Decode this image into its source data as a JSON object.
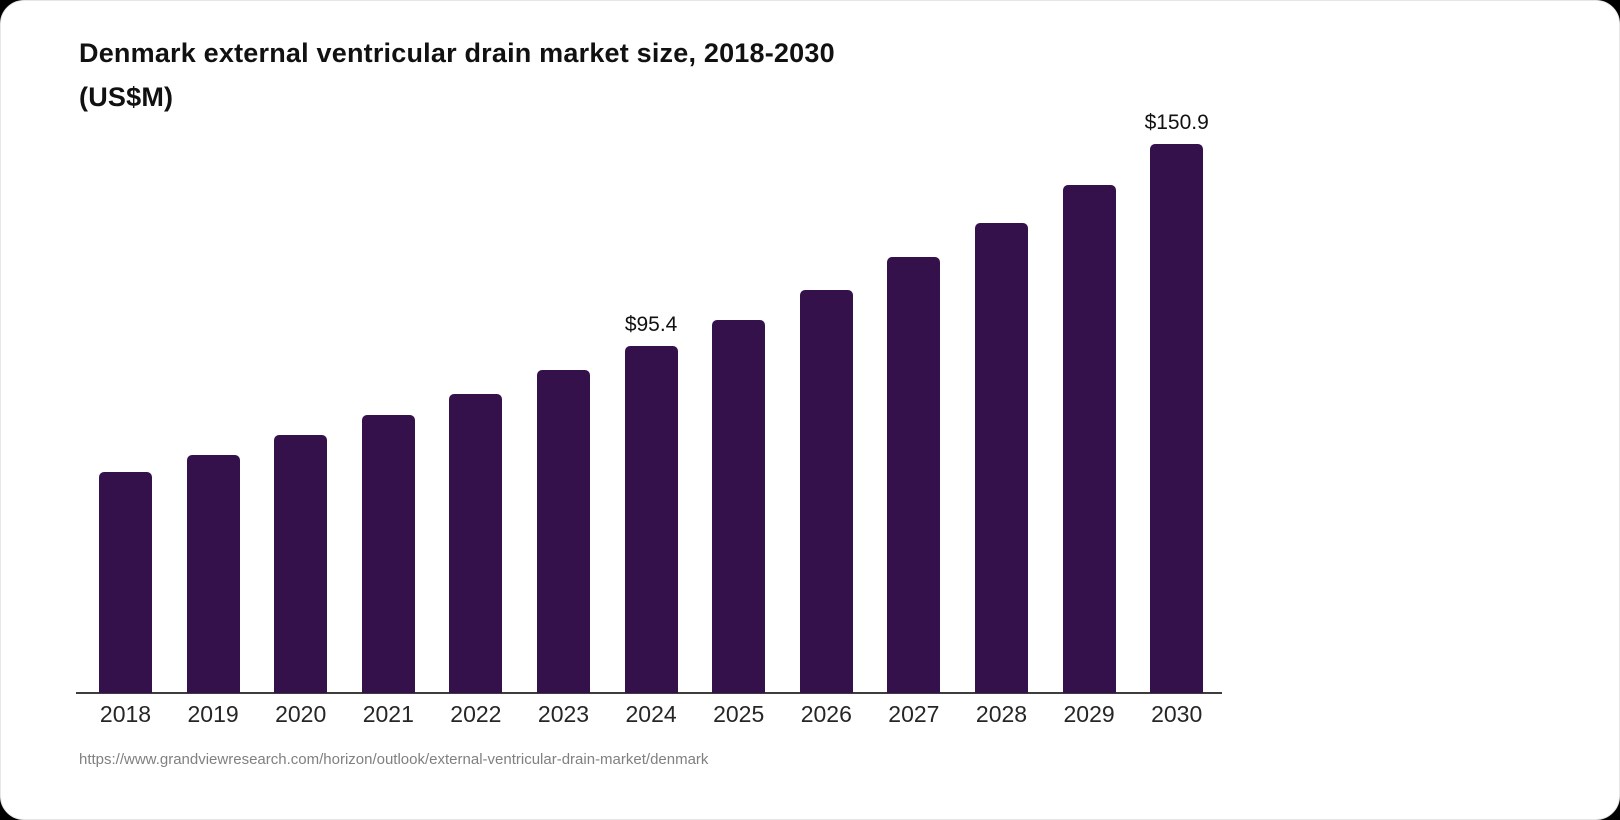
{
  "header": {
    "title_line1": "Denmark external ventricular drain market size, 2018-2030",
    "title_line2": "(US$M)"
  },
  "footer": {
    "source_url": "https://www.grandviewresearch.com/horizon/outlook/external-ventricular-drain-market/denmark"
  },
  "chart_data": {
    "type": "bar",
    "title": "Denmark external ventricular drain market size, 2018-2030 (US$M)",
    "xlabel": "",
    "ylabel": "US$M",
    "categories": [
      "2018",
      "2019",
      "2020",
      "2021",
      "2022",
      "2023",
      "2024",
      "2025",
      "2026",
      "2027",
      "2028",
      "2029",
      "2030"
    ],
    "values": [
      60.7,
      65.5,
      71.0,
      76.3,
      82.1,
      88.6,
      95.4,
      102.5,
      110.8,
      119.7,
      129.0,
      139.6,
      150.9
    ],
    "data_labels": {
      "2024": "$95.4",
      "2030": "$150.9"
    },
    "bar_color": "#35114B",
    "axis_color": "#3D3D3D",
    "tick_label_color": "#262626",
    "title_color": "#111111",
    "source_color": "#808080",
    "ylim": [
      0,
      160
    ],
    "grid": false,
    "legend": "none",
    "y_axis_visible": false
  }
}
